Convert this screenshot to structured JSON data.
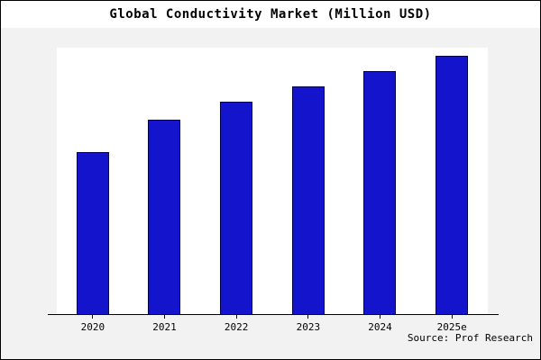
{
  "chart_data": {
    "type": "bar",
    "title": "Global Conductivity Market (Million USD)",
    "categories": [
      "2020",
      "2021",
      "2022",
      "2023",
      "2024",
      "2025e"
    ],
    "values": [
      62.5,
      75,
      82,
      88,
      94,
      100
    ],
    "xlabel": "",
    "ylabel": "",
    "ylim": [
      0,
      103
    ],
    "grid": false,
    "legend_position": "none",
    "bar_color": "#1414cc",
    "bar_border_color": "#00004d",
    "plot_background": "#ffffff",
    "figure_background": "#f2f2f2"
  },
  "footer": {
    "source_label": "Source: Prof Research"
  }
}
